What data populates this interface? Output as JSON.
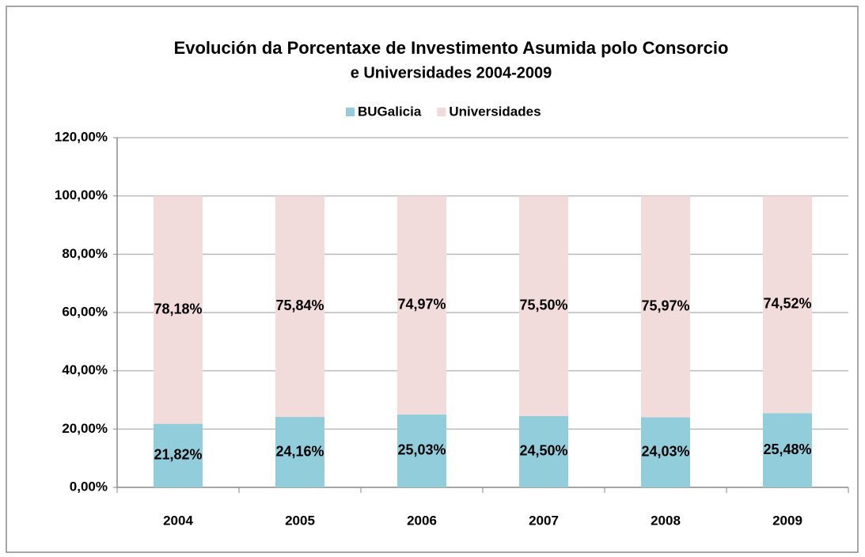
{
  "chart_data": {
    "type": "stacked_bar",
    "title": [
      "Evolución da Porcentaxe de Investimento Asumida polo Consorcio",
      "e Universidades  2004-2009"
    ],
    "categories": [
      "2004",
      "2005",
      "2006",
      "2007",
      "2008",
      "2009"
    ],
    "series": [
      {
        "name": "BUGalicia",
        "color": "#92cddc",
        "values": [
          21.82,
          24.16,
          25.03,
          24.5,
          24.03,
          25.48
        ],
        "value_labels": [
          "21,82%",
          "24,16%",
          "25,03%",
          "24,50%",
          "24,03%",
          "25,48%"
        ]
      },
      {
        "name": "Universidades",
        "color": "#f2dcdb",
        "values": [
          78.18,
          75.84,
          74.97,
          75.5,
          75.97,
          74.52
        ],
        "value_labels": [
          "78,18%",
          "75,84%",
          "74,97%",
          "75,50%",
          "75,97%",
          "74,52%"
        ]
      }
    ],
    "ylim": [
      0,
      120
    ],
    "yticks": [
      {
        "value": 0,
        "label": "0,00%"
      },
      {
        "value": 20,
        "label": "20,00%"
      },
      {
        "value": 40,
        "label": "40,00%"
      },
      {
        "value": 60,
        "label": "60,00%"
      },
      {
        "value": 80,
        "label": "80,00%"
      },
      {
        "value": 100,
        "label": "100,00%"
      },
      {
        "value": 120,
        "label": "120,00%"
      }
    ],
    "grid": true,
    "legend": "top"
  }
}
